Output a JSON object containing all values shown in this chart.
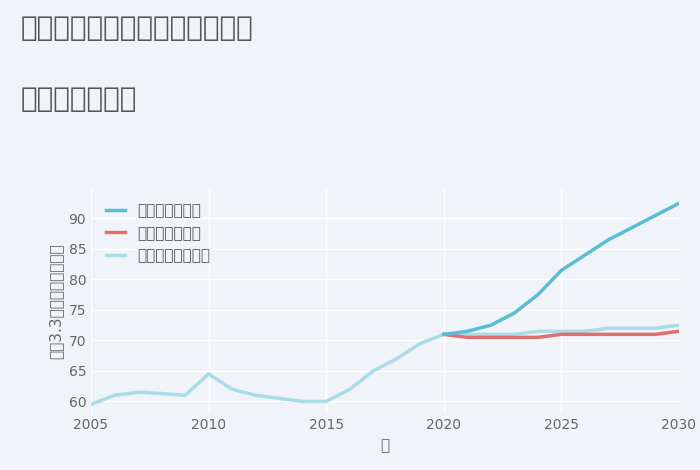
{
  "title_line1": "愛知県名古屋市熱田区須賀町の",
  "title_line2": "土地の価格推移",
  "xlabel": "年",
  "ylabel": "坪（3.3㎡）単価（万円）",
  "background_color": "#f0f4f8",
  "plot_background": "#f0f4f8",
  "grid_color": "#ffffff",
  "years_historical": [
    2005,
    2006,
    2007,
    2008,
    2009,
    2010,
    2011,
    2012,
    2013,
    2014,
    2015,
    2016,
    2017,
    2018,
    2019,
    2020
  ],
  "values_historical": [
    59.5,
    61.0,
    61.5,
    61.3,
    61.0,
    64.5,
    62.0,
    61.0,
    60.5,
    60.0,
    60.0,
    62.0,
    65.0,
    67.0,
    69.5,
    71.0
  ],
  "years_good": [
    2020,
    2021,
    2022,
    2023,
    2024,
    2025,
    2026,
    2027,
    2028,
    2029,
    2030
  ],
  "values_good": [
    71.0,
    71.5,
    72.5,
    74.5,
    77.5,
    81.5,
    84.0,
    86.5,
    88.5,
    90.5,
    92.5
  ],
  "years_bad": [
    2020,
    2021,
    2022,
    2023,
    2024,
    2025,
    2026,
    2027,
    2028,
    2029,
    2030
  ],
  "values_bad": [
    71.0,
    70.5,
    70.5,
    70.5,
    70.5,
    71.0,
    71.0,
    71.0,
    71.0,
    71.0,
    71.5
  ],
  "years_normal": [
    2020,
    2021,
    2022,
    2023,
    2024,
    2025,
    2026,
    2027,
    2028,
    2029,
    2030
  ],
  "values_normal": [
    71.0,
    71.0,
    71.0,
    71.0,
    71.5,
    71.5,
    71.5,
    72.0,
    72.0,
    72.0,
    72.5
  ],
  "color_good": "#5bbcd6",
  "color_bad": "#e07070",
  "color_normal": "#aadce8",
  "color_historical": "#aadce8",
  "legend_label_good": "グッドシナリオ",
  "legend_label_bad": "バッドシナリオ",
  "legend_label_normal": "ノーマルシナリオ",
  "ylim": [
    58,
    95
  ],
  "xlim": [
    2005,
    2030
  ],
  "yticks": [
    60,
    65,
    70,
    75,
    80,
    85,
    90
  ],
  "xticks": [
    2005,
    2010,
    2015,
    2020,
    2025,
    2030
  ],
  "title_fontsize": 20,
  "label_fontsize": 11,
  "tick_fontsize": 10,
  "legend_fontsize": 11,
  "line_width": 2.5
}
